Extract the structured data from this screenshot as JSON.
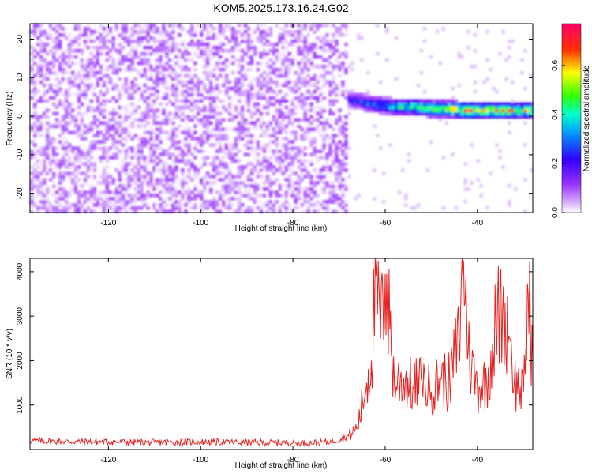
{
  "title": "KOM5.2025.173.16.24.G02",
  "chart_data": [
    {
      "type": "heatmap",
      "xlabel": "Height of straight line (km)",
      "ylabel": "Frequency (Hz)",
      "xlim": [
        -137,
        -28
      ],
      "ylim": [
        -25,
        24
      ],
      "xticks": [
        -120,
        -100,
        -80,
        -60,
        -40
      ],
      "yticks": [
        -20,
        -10,
        0,
        10,
        20
      ],
      "colorbar": {
        "label": "Normalized spectral amplitude",
        "range": [
          0,
          0.77
        ],
        "ticks": [
          0.0,
          0.2,
          0.4,
          0.6
        ],
        "colormap": [
          "#ffffff",
          "#cc99ff",
          "#6600ff",
          "#0000ff",
          "#00ffff",
          "#00ff00",
          "#ffff00",
          "#ff0000",
          "#ff0066"
        ]
      },
      "description_points": {
        "noise_region_x": [
          -137,
          -68
        ],
        "noise_amplitude_range": [
          0.0,
          0.12
        ],
        "signal_track": {
          "x": [
            -70,
            -66,
            -62,
            -58,
            -54,
            -50,
            -46,
            -42,
            -38,
            -34,
            -30,
            -28
          ],
          "freq": [
            5.0,
            4.0,
            3.0,
            2.5,
            2.5,
            2.0,
            2.0,
            1.5,
            1.5,
            1.5,
            1.5,
            1.5
          ],
          "amplitude": [
            0.15,
            0.25,
            0.35,
            0.4,
            0.45,
            0.5,
            0.6,
            0.65,
            0.6,
            0.6,
            0.55,
            0.5
          ]
        }
      }
    },
    {
      "type": "line",
      "xlabel": "Height of straight line (km)",
      "ylabel": "SNR (10 * v/v)",
      "xlim": [
        -137,
        -28
      ],
      "ylim": [
        0,
        4300
      ],
      "xticks": [
        -120,
        -100,
        -80,
        -60,
        -40
      ],
      "yticks": [
        1000,
        2000,
        3000,
        4000
      ],
      "color": "#e8201e",
      "series": [
        {
          "x": [
            -137,
            -130,
            -120,
            -110,
            -100,
            -90,
            -80,
            -72,
            -68,
            -66,
            -64,
            -63,
            -62,
            -61,
            -60,
            -59,
            -58,
            -56,
            -54,
            -52,
            -50,
            -48,
            -46,
            -44,
            -43,
            -42,
            -40,
            -38,
            -36,
            -34,
            -33,
            -32,
            -30,
            -29,
            -28
          ],
          "y": [
            200,
            180,
            170,
            160,
            170,
            160,
            150,
            160,
            300,
            500,
            1500,
            2000,
            3900,
            2500,
            3950,
            2700,
            1500,
            1600,
            1400,
            1500,
            1300,
            1600,
            1500,
            2500,
            4250,
            2200,
            1400,
            1500,
            2800,
            3300,
            2500,
            1500,
            1300,
            3500,
            2000
          ]
        }
      ]
    }
  ]
}
